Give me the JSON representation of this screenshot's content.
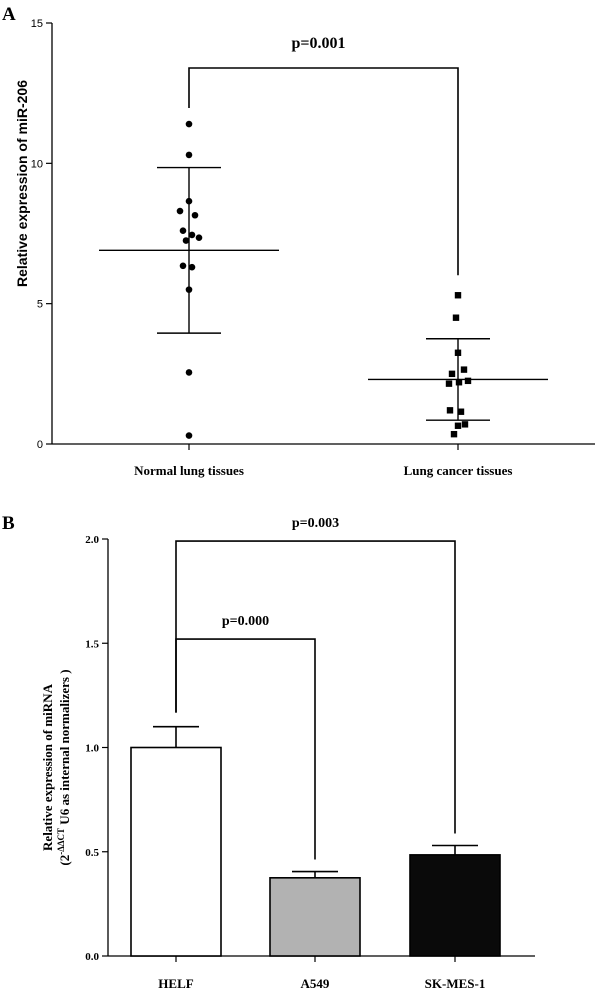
{
  "chart_data": [
    {
      "panel": "A",
      "type": "scatter",
      "pvalue": "p=0.001",
      "xlabel": "",
      "ylabel": "Relative expression of miR-206",
      "ylim": [
        0,
        15
      ],
      "yticks": [
        0,
        5,
        10,
        15
      ],
      "categories": [
        "Normal lung tissues",
        "Lung cancer tissues"
      ],
      "series": [
        {
          "name": "Normal lung tissues",
          "marker": "circle",
          "values": [
            11.4,
            10.3,
            8.65,
            8.3,
            8.15,
            7.6,
            7.45,
            7.35,
            7.25,
            6.35,
            6.3,
            5.5,
            2.55,
            0.3
          ],
          "mean": 6.9,
          "sd_upper": 9.85,
          "sd_lower": 3.95
        },
        {
          "name": "Lung cancer tissues",
          "marker": "square",
          "values": [
            5.3,
            4.5,
            3.25,
            2.65,
            2.5,
            2.25,
            2.2,
            2.15,
            1.2,
            1.15,
            0.7,
            0.65,
            0.35
          ],
          "mean": 2.3,
          "sd_upper": 3.75,
          "sd_lower": 0.85
        }
      ]
    },
    {
      "panel": "B",
      "type": "bar",
      "ylabel_line1": "Relative expression of miRNA",
      "ylabel_line2_prefix": "(2",
      "ylabel_line2_sup": "-ΔΔCT",
      "ylabel_line2_suffix": " U6 as internal normalizers )",
      "ylim": [
        0,
        2.0
      ],
      "yticks": [
        "0.0",
        "0.5",
        "1.0",
        "1.5",
        "2.0"
      ],
      "categories": [
        "HELF",
        "A549",
        "SK-MES-1"
      ],
      "values": [
        1.0,
        0.375,
        0.485
      ],
      "errors": [
        0.1,
        0.03,
        0.045
      ],
      "colors": [
        "#ffffff",
        "#b2b2b2",
        "#0a0a0a"
      ],
      "comparisons": [
        {
          "from": 0,
          "to": 1,
          "label": "p=0.000",
          "level": 1.52
        },
        {
          "from": 0,
          "to": 2,
          "label": "p=0.003",
          "level": 1.99
        }
      ]
    }
  ]
}
